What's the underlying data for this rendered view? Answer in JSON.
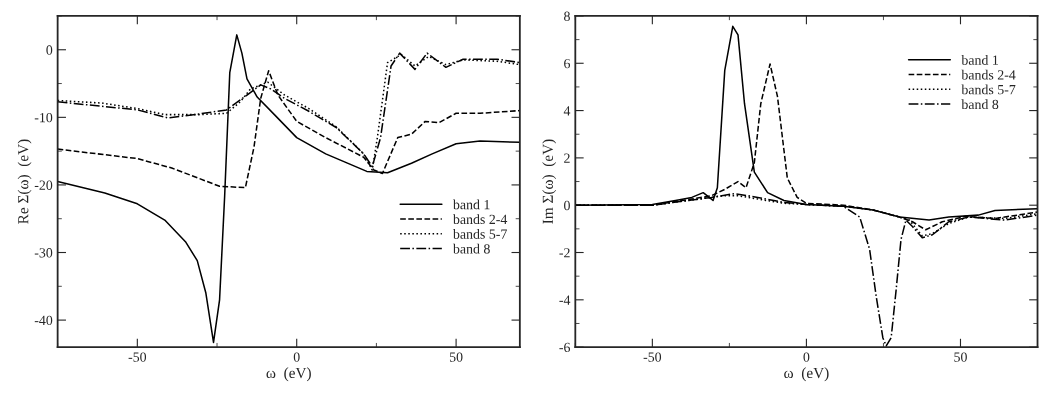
{
  "chart_data": [
    {
      "type": "line",
      "xlabel": "ω  (eV)",
      "ylabel": "Re Σ(ω)  (eV)",
      "xlim": [
        -75,
        70
      ],
      "ylim": [
        -44,
        5
      ],
      "xticks": [
        -50,
        0,
        50
      ],
      "yticks": [
        0,
        -10,
        -20,
        -30,
        -40
      ],
      "legend": "right",
      "grid": false,
      "series": [
        {
          "name": "band 1",
          "color": "#000000",
          "line_style": "solid",
          "x": [
            -75,
            -60.2,
            -50,
            -41.4,
            -34.9,
            -31.2,
            -28.5,
            -26.1,
            -24.2,
            -22.6,
            -21,
            -18.8,
            -17.2,
            -15.6,
            -12.4,
            -7,
            0,
            9.1,
            22,
            28.5,
            36,
            42.5,
            50,
            57.5,
            70
          ],
          "values": [
            -19.5,
            -21.2,
            -22.8,
            -25.2,
            -28.4,
            -31.2,
            -36,
            -43.3,
            -37,
            -21.6,
            -3.4,
            2.2,
            -0.5,
            -4.3,
            -7,
            -9.6,
            -13,
            -15.4,
            -18,
            -18.2,
            -16.8,
            -15.4,
            -13.9,
            -13.5,
            -13.7
          ]
        },
        {
          "name": "bands 2-4",
          "color": "#000000",
          "line_style": "dashed",
          "x": [
            -75,
            -50,
            -39.2,
            -24.2,
            -16.1,
            -13.4,
            -11.3,
            -8.8,
            -5.9,
            0,
            9.1,
            21,
            24.2,
            26.9,
            31.7,
            36,
            40.3,
            44.6,
            50,
            57.5,
            70
          ],
          "values": [
            -14.7,
            -16.1,
            -17.5,
            -20.2,
            -20.4,
            -14.4,
            -7.2,
            -3.1,
            -6.7,
            -10.6,
            -13,
            -15.9,
            -17.8,
            -18.3,
            -13,
            -12.5,
            -10.6,
            -10.8,
            -9.4,
            -9.4,
            -9
          ]
        },
        {
          "name": "bands 5-7",
          "color": "#000000",
          "line_style": "dotted",
          "x": [
            -75,
            -60.8,
            -50,
            -41.4,
            -30.6,
            -22,
            -17.7,
            -14.5,
            -9.1,
            -3.8,
            3.8,
            12.4,
            21,
            23.7,
            25.3,
            28.5,
            32.8,
            37.1,
            41.4,
            46.8,
            52.2,
            62.9,
            70
          ],
          "values": [
            -7.5,
            -7.9,
            -8.7,
            -9.6,
            -9.6,
            -9.4,
            -7.7,
            -5.8,
            -4.8,
            -6.7,
            -8.7,
            -11.4,
            -15.4,
            -17.8,
            -13,
            -1.9,
            -0.7,
            -2.4,
            -1,
            -2.2,
            -1.5,
            -1.7,
            -2.2
          ]
        },
        {
          "name": "band 8",
          "color": "#000000",
          "line_style": "dashdot",
          "x": [
            -75,
            -50,
            -40.3,
            -30.6,
            -22,
            -15.6,
            -11.3,
            -8.1,
            -3.8,
            3.8,
            12.4,
            21,
            23.7,
            26.3,
            29.6,
            32.3,
            37.1,
            40.9,
            46.8,
            52.2,
            62.9,
            70
          ],
          "values": [
            -7.7,
            -8.9,
            -10.1,
            -9.5,
            -8.9,
            -6.7,
            -5.2,
            -5.8,
            -7.2,
            -9.1,
            -11.5,
            -15.4,
            -17.3,
            -13,
            -2.4,
            -0.5,
            -2.9,
            -0.5,
            -2.6,
            -1.4,
            -1.4,
            -1.9
          ]
        }
      ]
    },
    {
      "type": "line",
      "xlabel": "ω  (eV)",
      "ylabel": "Im Σ(ω)  (eV)",
      "xlim": [
        -75,
        75
      ],
      "ylim": [
        -6,
        8
      ],
      "xticks": [
        -50,
        0,
        50
      ],
      "yticks": [
        -6,
        -4,
        -2,
        0,
        2,
        4,
        6,
        8
      ],
      "legend": "top right",
      "grid": false,
      "series": [
        {
          "name": "band 1",
          "color": "#000000",
          "line_style": "solid",
          "x": [
            -75,
            -50,
            -42.5,
            -37.2,
            -33.5,
            -30.3,
            -28.9,
            -26.5,
            -23.9,
            -22.2,
            -20.1,
            -16.9,
            -12.6,
            -7.3,
            0,
            12,
            21.6,
            30.2,
            39.8,
            46.2,
            55.8,
            61.2,
            75
          ],
          "values": [
            0,
            0.03,
            0.2,
            0.33,
            0.53,
            0.2,
            0.74,
            5.7,
            7.56,
            7.2,
            4.3,
            1.4,
            0.53,
            0.2,
            0.03,
            -0.04,
            -0.2,
            -0.5,
            -0.63,
            -0.5,
            -0.42,
            -0.22,
            -0.15
          ]
        },
        {
          "name": "bands 2-4",
          "color": "#000000",
          "line_style": "dashed",
          "x": [
            -75,
            -50,
            -37.2,
            -30.8,
            -26.5,
            -22.2,
            -19.6,
            -16.9,
            -14.8,
            -11.8,
            -9.4,
            -6.2,
            -3,
            0,
            12,
            21.6,
            30.2,
            34.4,
            38.7,
            44.1,
            51.6,
            61.2,
            75
          ],
          "values": [
            0,
            0,
            0.26,
            0.4,
            0.67,
            1.0,
            0.74,
            1.8,
            4.3,
            5.97,
            4.6,
            1.15,
            0.33,
            0.08,
            0,
            -0.2,
            -0.5,
            -0.7,
            -1.04,
            -0.7,
            -0.47,
            -0.56,
            -0.29
          ]
        },
        {
          "name": "bands 5-7",
          "color": "#000000",
          "line_style": "dotted",
          "x": [
            -75,
            -50,
            -37.2,
            -26.5,
            -22.2,
            -15.8,
            -7.3,
            0,
            12,
            21.6,
            30.2,
            33.4,
            37.6,
            40.9,
            46.2,
            52.6,
            64.4,
            75
          ],
          "values": [
            0,
            0,
            0.22,
            0.4,
            0.4,
            0.26,
            0.08,
            0.03,
            -0.04,
            -0.2,
            -0.5,
            -0.63,
            -1.3,
            -1.2,
            -0.77,
            -0.5,
            -0.56,
            -0.36
          ]
        },
        {
          "name": "band 8",
          "color": "#000000",
          "line_style": "dashdot",
          "x": [
            -75,
            -50,
            -37.2,
            -30.8,
            -23.3,
            -15.8,
            -7.3,
            0,
            12,
            17.3,
            20.5,
            22.7,
            24.8,
            25.9,
            27.5,
            29.1,
            30.7,
            32.3,
            34.4,
            37.6,
            40.9,
            46.2,
            52.6,
            64.4,
            75
          ],
          "values": [
            0,
            0,
            0.22,
            0.33,
            0.49,
            0.33,
            0.12,
            0.03,
            -0.05,
            -0.5,
            -1.86,
            -3.9,
            -5.6,
            -5.95,
            -5.6,
            -3.6,
            -1.45,
            -0.63,
            -0.9,
            -1.38,
            -1.25,
            -0.7,
            -0.5,
            -0.63,
            -0.42
          ]
        }
      ]
    }
  ]
}
